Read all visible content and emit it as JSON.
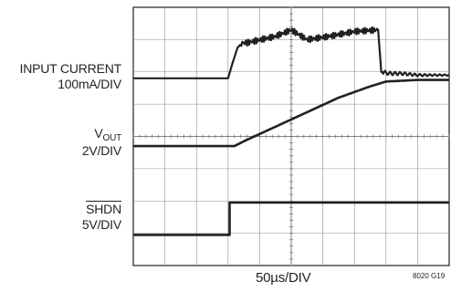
{
  "chart_data": {
    "type": "line",
    "title": "",
    "xlabel": "50µs/DIV",
    "figure_id": "8020 G19",
    "grid": true,
    "divisions": {
      "x": 10,
      "y": 8
    },
    "x_unit": "DIV",
    "series": [
      {
        "name": "INPUT CURRENT",
        "scale": "100mA/DIV",
        "color": "#231f20",
        "x": [
          0,
          3.0,
          3.15,
          3.3,
          3.45,
          3.6,
          4.5,
          5.0,
          5.5,
          6.2,
          7.0,
          7.75,
          7.85,
          8.1,
          8.5,
          9.0,
          10.0
        ],
        "y": [
          5.8,
          5.8,
          6.3,
          6.75,
          6.9,
          6.9,
          7.1,
          7.3,
          7.0,
          7.1,
          7.25,
          7.3,
          6.0,
          5.95,
          5.95,
          5.9,
          5.9
        ]
      },
      {
        "name": "VOUT",
        "scale": "2V/DIV",
        "color": "#231f20",
        "x": [
          0,
          3.2,
          3.5,
          4.5,
          5.5,
          6.5,
          7.5,
          8.0,
          9.0,
          10.0
        ],
        "y": [
          3.7,
          3.7,
          3.85,
          4.3,
          4.75,
          5.2,
          5.55,
          5.7,
          5.75,
          5.75
        ]
      },
      {
        "name": "SHDN",
        "scale": "5V/DIV",
        "color": "#231f20",
        "x": [
          0,
          3.05,
          3.05,
          10.0
        ],
        "y": [
          0.95,
          0.95,
          1.95,
          1.95
        ]
      }
    ]
  },
  "labels": {
    "ic_name": "INPUT CURRENT",
    "ic_scale": "100mA/DIV",
    "vout_main": "V",
    "vout_sub": "OUT",
    "vout_scale": "2V/DIV",
    "shdn_name": "SHDN",
    "shdn_scale": "5V/DIV"
  }
}
